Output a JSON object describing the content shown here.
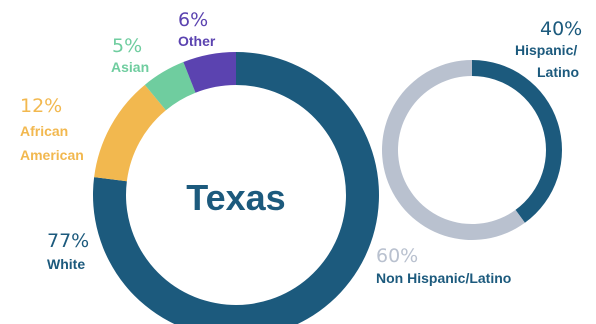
{
  "colors": {
    "white": "#1c5a7d",
    "african_american": "#f2b84f",
    "asian": "#6fcd9f",
    "other": "#5b43b0",
    "hispanic": "#1c5a7d",
    "non_hispanic": "#b9c1cf",
    "center_text": "#1c5a7d"
  },
  "chart_data": [
    {
      "type": "pie",
      "center_label": "Texas",
      "slices": [
        {
          "name": "White",
          "value": 77,
          "value_label": "77%"
        },
        {
          "name": "African American",
          "value": 12,
          "value_label": "12%"
        },
        {
          "name": "Asian",
          "value": 5,
          "value_label": "5%"
        },
        {
          "name": "Other",
          "value": 6,
          "value_label": "6%"
        }
      ]
    },
    {
      "type": "pie",
      "slices": [
        {
          "name": "Hispanic/ Latino",
          "value": 40,
          "value_label": "40%"
        },
        {
          "name": "Non Hispanic/Latino",
          "value": 60,
          "value_label": "60%"
        }
      ]
    }
  ],
  "labels": {
    "white": {
      "pct": "77%",
      "name": "White"
    },
    "african_american": {
      "pct": "12%",
      "name_line1": "African",
      "name_line2": "American"
    },
    "asian": {
      "pct": "5%",
      "name": "Asian"
    },
    "other": {
      "pct": "6%",
      "name": "Other"
    },
    "hispanic": {
      "pct": "40%",
      "name_line1": "Hispanic/",
      "name_line2": "Latino"
    },
    "non_hispanic": {
      "pct": "60%",
      "name": "Non Hispanic/Latino"
    }
  }
}
